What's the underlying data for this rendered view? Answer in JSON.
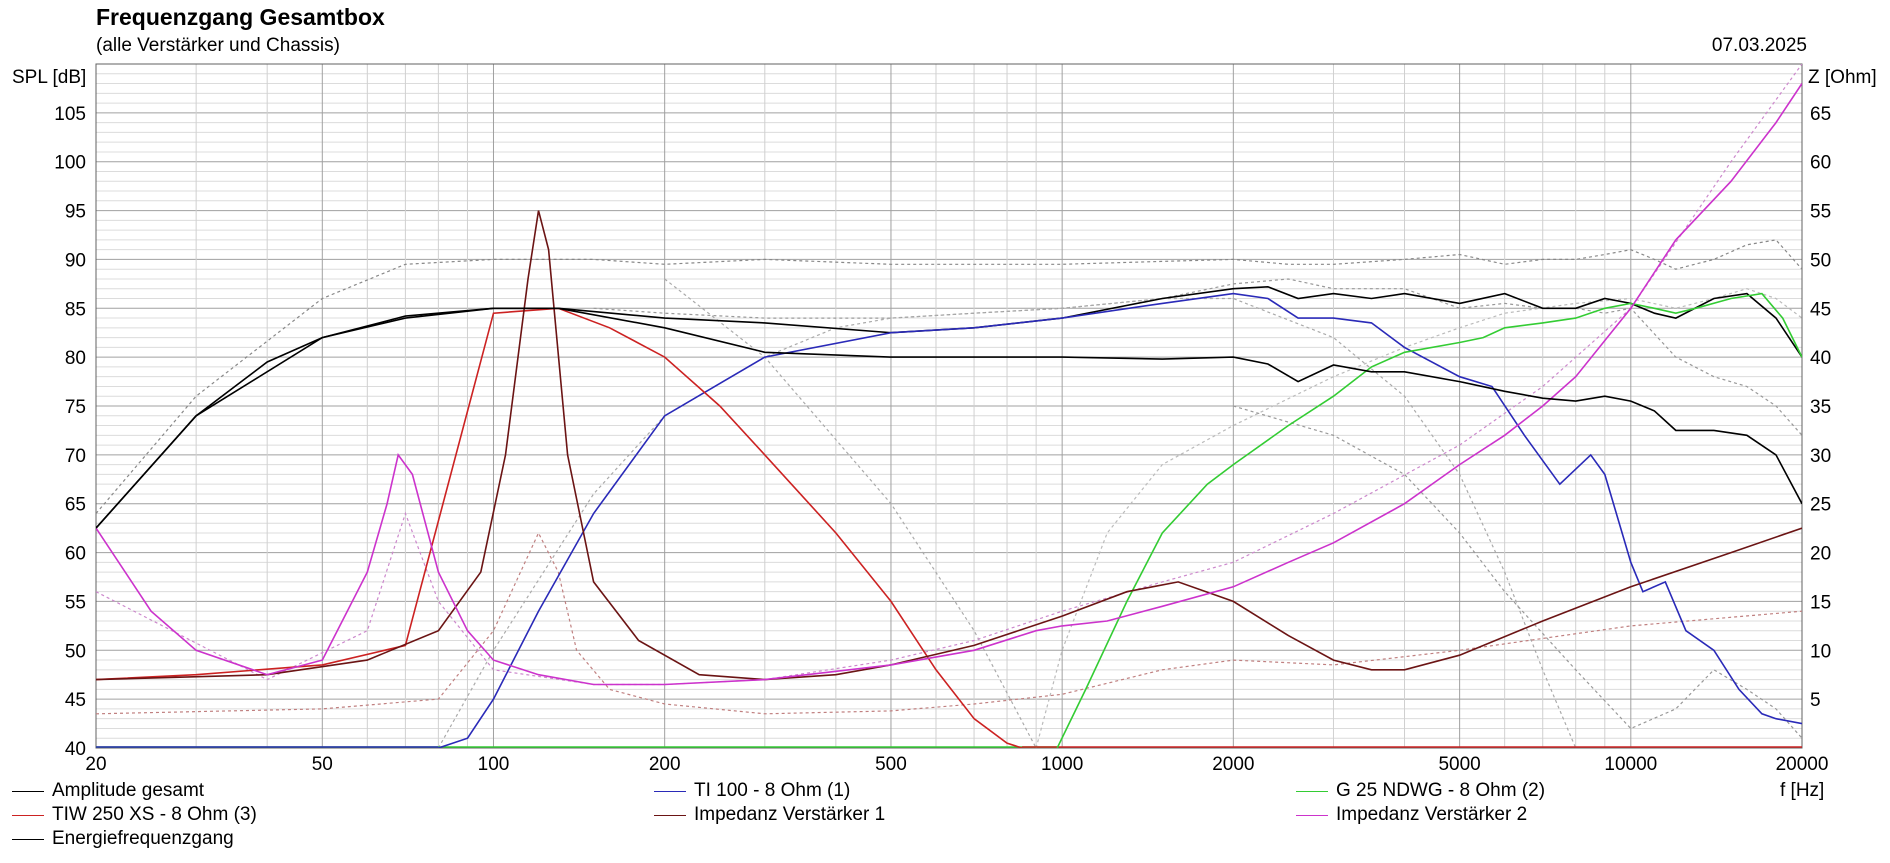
{
  "header": {
    "title": "Frequenzgang Gesamtbox",
    "subtitle": "(alle Verstärker und Chassis)",
    "date": "07.03.2025"
  },
  "chart_data": {
    "type": "line",
    "title": "Frequenzgang Gesamtbox",
    "subtitle": "(alle Verstärker und Chassis)",
    "xlabel": "f [Hz]",
    "ylabel": "SPL [dB]",
    "y2label": "Z [Ohm]",
    "xscale": "log",
    "xlim": [
      20,
      20000
    ],
    "ylim": [
      40,
      110
    ],
    "y2lim": [
      0,
      70
    ],
    "grid": true,
    "legend_position": "bottom",
    "x_ticks": [
      20,
      50,
      100,
      200,
      500,
      1000,
      2000,
      5000,
      10000,
      20000
    ],
    "y_ticks": [
      40,
      45,
      50,
      55,
      60,
      65,
      70,
      75,
      80,
      85,
      90,
      95,
      100,
      105
    ],
    "y2_ticks": [
      5,
      10,
      15,
      20,
      25,
      30,
      35,
      40,
      45,
      50,
      55,
      60,
      65
    ],
    "series": [
      {
        "name": "Amplitude gesamt",
        "axis": "left",
        "color": "#000000",
        "x": [
          20,
          30,
          40,
          50,
          70,
          100,
          130,
          200,
          300,
          500,
          700,
          1000,
          1500,
          2000,
          2300,
          2600,
          3000,
          3500,
          4000,
          5000,
          6000,
          7000,
          8000,
          9000,
          10000,
          11000,
          12000,
          14000,
          16000,
          18000,
          20000
        ],
        "y": [
          62.5,
          74,
          79.5,
          82,
          84,
          85,
          85,
          84,
          83.5,
          82.5,
          83,
          84,
          86,
          87,
          87.2,
          86,
          86.5,
          86,
          86.5,
          85.5,
          86.5,
          85,
          85,
          86,
          85.5,
          84.5,
          84,
          86,
          86.5,
          84,
          80
        ]
      },
      {
        "name": "TI 100 - 8 Ohm (1)",
        "axis": "left",
        "color": "#2a2ab8",
        "x": [
          80,
          90,
          100,
          120,
          150,
          200,
          300,
          500,
          700,
          1000,
          1500,
          2000,
          2300,
          2600,
          3000,
          3500,
          4000,
          5000,
          5700,
          6500,
          7500,
          8500,
          9000,
          10000,
          10500,
          11500,
          12500,
          14000,
          15500,
          17000,
          18000,
          20000
        ],
        "y": [
          40,
          41,
          45,
          54,
          64,
          74,
          80,
          82.5,
          83,
          84,
          85.5,
          86.5,
          86,
          84,
          84,
          83.5,
          81,
          78,
          77,
          72,
          67,
          70,
          68,
          59,
          56,
          57,
          52,
          50,
          46,
          43.5,
          43,
          42.5
        ]
      },
      {
        "name": "G 25 NDWG - 8 Ohm (2)",
        "axis": "left",
        "color": "#33cc33",
        "x": [
          980,
          1100,
          1300,
          1500,
          1800,
          2000,
          2500,
          3000,
          3500,
          4000,
          5000,
          5500,
          6000,
          7000,
          8000,
          9000,
          10000,
          11000,
          12000,
          13000,
          15000,
          17000,
          18500,
          20000
        ],
        "y": [
          40,
          46,
          55,
          62,
          67,
          69,
          73,
          76,
          79,
          80.5,
          81.5,
          82,
          83,
          83.5,
          84,
          85,
          85.5,
          85,
          84.5,
          85,
          86,
          86.5,
          84,
          80
        ]
      },
      {
        "name": "TIW 250 XS - 8 Ohm (3)",
        "axis": "left",
        "color": "#cc2222",
        "x": [
          20,
          30,
          50,
          70,
          100,
          130,
          160,
          200,
          250,
          300,
          400,
          500,
          600,
          700,
          800,
          850
        ],
        "y": [
          47,
          47.5,
          48.5,
          50.5,
          84.5,
          85,
          83,
          80,
          75,
          70,
          62,
          55,
          48,
          43,
          40.5,
          40
        ]
      },
      {
        "name": "Impedanz Verstärker 1",
        "axis": "right",
        "color": "#6b1414",
        "x": [
          20,
          40,
          60,
          80,
          95,
          105,
          115,
          120,
          125,
          135,
          150,
          180,
          230,
          300,
          400,
          500,
          700,
          1000,
          1300,
          1600,
          2000,
          2500,
          3000,
          3500,
          4000,
          5000,
          7000,
          10000,
          15000,
          20000
        ],
        "y": [
          7,
          7.5,
          9,
          12,
          18,
          30,
          48,
          55,
          51,
          30,
          17,
          11,
          7.5,
          7,
          7.5,
          8.5,
          10.5,
          13.5,
          16,
          17,
          15,
          11.5,
          9,
          8,
          8,
          9.5,
          13,
          16.5,
          20,
          22.5
        ]
      },
      {
        "name": "Impedanz Verstärker 2",
        "axis": "right",
        "color": "#cc33cc",
        "x": [
          20,
          25,
          30,
          40,
          50,
          60,
          65,
          68,
          72,
          80,
          90,
          100,
          120,
          150,
          200,
          300,
          500,
          700,
          900,
          1000,
          1200,
          1500,
          2000,
          2500,
          3000,
          4000,
          5000,
          6000,
          7000,
          8000,
          10000,
          12000,
          15000,
          18000,
          20000
        ],
        "y": [
          22.5,
          14,
          10,
          7.5,
          9,
          18,
          25,
          30,
          28,
          18,
          12,
          9,
          7.5,
          6.5,
          6.5,
          7,
          8.5,
          10,
          12,
          12.5,
          13,
          14.5,
          16.5,
          19,
          21,
          25,
          29,
          32,
          35,
          38,
          45,
          52,
          58,
          64,
          68
        ]
      },
      {
        "name": "Energiefrequenzgang",
        "axis": "left",
        "color": "#000000",
        "x": [
          20,
          30,
          50,
          70,
          100,
          130,
          200,
          300,
          500,
          600,
          700,
          1000,
          1500,
          2000,
          2300,
          2600,
          3000,
          3500,
          4000,
          5000,
          6000,
          7000,
          8000,
          9000,
          10000,
          11000,
          12000,
          14000,
          16000,
          18000,
          20000
        ],
        "y": [
          62.5,
          74,
          82,
          84.2,
          85,
          85,
          83,
          80.5,
          80,
          80,
          80,
          80,
          79.8,
          80,
          79.3,
          77.5,
          79.2,
          78.5,
          78.5,
          77.5,
          76.5,
          75.8,
          75.5,
          76,
          75.5,
          74.5,
          72.5,
          72.5,
          72,
          70,
          65
        ]
      }
    ],
    "reference_curves": [
      {
        "color": "#888888",
        "x": [
          20,
          30,
          50,
          70,
          100,
          150,
          200,
          300,
          500,
          700,
          1000,
          1500,
          2000,
          2500,
          3000,
          4000,
          5000,
          6000,
          7000,
          8000,
          9000,
          10000,
          11000,
          12000,
          14000,
          16000,
          18000,
          20000
        ],
        "y": [
          64,
          76,
          86,
          89.5,
          90,
          90,
          89.5,
          90,
          89.5,
          89.5,
          89.5,
          89.8,
          90,
          89.5,
          89.5,
          90,
          90.5,
          89.5,
          90,
          90,
          90.5,
          91,
          90,
          89,
          90,
          91.5,
          92,
          89
        ]
      },
      {
        "color": "#999999",
        "x": [
          150,
          200,
          300,
          500,
          700,
          1000,
          1500,
          2000,
          2500,
          3000,
          4000,
          5000,
          6000,
          7000,
          8000,
          9000,
          10000,
          12000,
          14000,
          16000,
          18000,
          20000
        ],
        "y": [
          85,
          84.5,
          84,
          84,
          84.5,
          85,
          86,
          87.5,
          88,
          87,
          87,
          85,
          85.5,
          85,
          85,
          84.5,
          85,
          80,
          78,
          77,
          75,
          72
        ]
      },
      {
        "color": "#aaaaaa",
        "x": [
          80,
          100,
          150,
          200,
          300,
          400,
          500,
          700,
          1000,
          1500,
          2000,
          3000,
          4000,
          5000,
          6000,
          7000,
          8000
        ],
        "y": [
          40,
          50,
          66,
          74,
          80,
          83,
          84,
          84.5,
          85,
          86,
          86,
          82,
          76,
          68,
          58,
          48,
          40
        ]
      },
      {
        "color": "#aaaaaa",
        "x": [
          200,
          300,
          500,
          700,
          900
        ],
        "y": [
          88,
          80,
          65,
          52,
          40
        ]
      },
      {
        "color": "#bbbbbb",
        "x": [
          900,
          1000,
          1200,
          1500,
          2000,
          3000,
          4000,
          5000,
          6000,
          8000,
          10000,
          12000,
          14000,
          16000,
          18000,
          20000
        ],
        "y": [
          40,
          50,
          62,
          69,
          73,
          78,
          81,
          83,
          84.5,
          85.5,
          86,
          85,
          86,
          87,
          86,
          84
        ]
      },
      {
        "color": "#999999",
        "x": [
          2000,
          3000,
          4000,
          5000,
          6000,
          8000,
          10000,
          12000,
          14000,
          16000,
          18000,
          20000
        ],
        "y": [
          75,
          72,
          68,
          62,
          56,
          48,
          42,
          44,
          48,
          46,
          44,
          41
        ]
      },
      {
        "color": "#c08080",
        "x": [
          20,
          50,
          80,
          100,
          120,
          130,
          140,
          160,
          200,
          300,
          500,
          700,
          1000,
          1500,
          2000,
          3000,
          5000,
          10000,
          20000
        ],
        "y": [
          3.5,
          4,
          5,
          12,
          22,
          18,
          10,
          6,
          4.5,
          3.5,
          3.8,
          4.5,
          5.5,
          8,
          9,
          8.5,
          10,
          12.5,
          14
        ]
      },
      {
        "color": "#cc88cc",
        "x": [
          20,
          40,
          60,
          70,
          80,
          100,
          150,
          200,
          300,
          500,
          700,
          1000,
          1500,
          2000,
          3000,
          5000,
          7000,
          10000,
          15000,
          20000
        ],
        "y": [
          16,
          7,
          12,
          24,
          15,
          8,
          6.5,
          6.5,
          7,
          9,
          11,
          14,
          17,
          19,
          24,
          31,
          37,
          45,
          60,
          70
        ]
      }
    ]
  }
}
